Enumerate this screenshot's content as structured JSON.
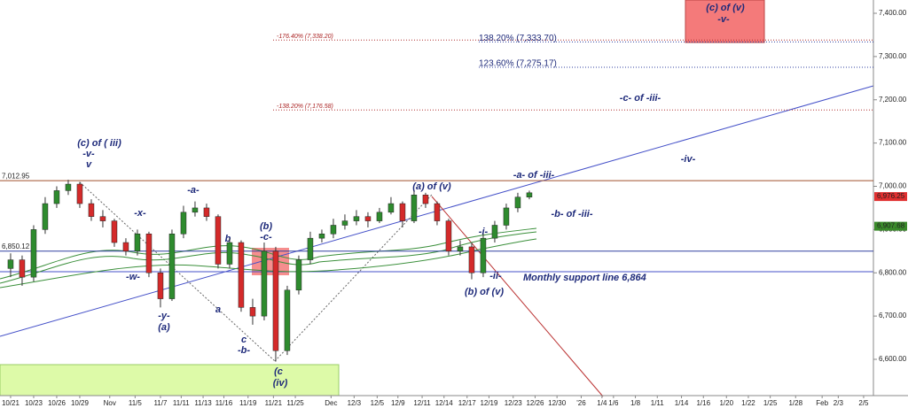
{
  "chart_data": {
    "type": "candlestick",
    "x": [
      0,
      1,
      2,
      3,
      4,
      5,
      6,
      7,
      8,
      9,
      10,
      11,
      12,
      13,
      14,
      15,
      16,
      17,
      18,
      19,
      20,
      21,
      22,
      23,
      24,
      25,
      26,
      27,
      28,
      29,
      30,
      31,
      32,
      33,
      34,
      35,
      36,
      37,
      38,
      39,
      40,
      41,
      42,
      43,
      44,
      45
    ],
    "open": [
      6810,
      6830,
      6790,
      6900,
      6960,
      6990,
      7005,
      6960,
      6930,
      6920,
      6870,
      6850,
      6890,
      6800,
      6740,
      6890,
      6940,
      6950,
      6930,
      6820,
      6870,
      6720,
      6700,
      6850,
      6620,
      6760,
      6830,
      6880,
      6890,
      6910,
      6920,
      6930,
      6920,
      6940,
      6960,
      6920,
      6980,
      6960,
      6920,
      6850,
      6860,
      6800,
      6880,
      6910,
      6950,
      6975
    ],
    "high": [
      6845,
      6840,
      6910,
      6975,
      7000,
      7015,
      7010,
      6970,
      6945,
      6925,
      6880,
      6900,
      6895,
      6810,
      6900,
      6955,
      6965,
      6960,
      6935,
      6880,
      6875,
      6740,
      6870,
      6860,
      6770,
      6840,
      6895,
      6900,
      6925,
      6935,
      6945,
      6940,
      6950,
      6975,
      6965,
      6990,
      6985,
      6965,
      6925,
      6875,
      6870,
      6890,
      6920,
      6960,
      6985,
      6990
    ],
    "low": [
      6790,
      6770,
      6780,
      6890,
      6950,
      6980,
      6950,
      6920,
      6905,
      6860,
      6840,
      6840,
      6790,
      6720,
      6735,
      6880,
      6930,
      6920,
      6810,
      6810,
      6710,
      6680,
      6690,
      6595,
      6610,
      6750,
      6820,
      6870,
      6880,
      6900,
      6910,
      6905,
      6915,
      6935,
      6905,
      6915,
      6950,
      6910,
      6840,
      6840,
      6785,
      6790,
      6870,
      6900,
      6940,
      6970
    ],
    "close": [
      6830,
      6790,
      6900,
      6960,
      6990,
      7005,
      6960,
      6930,
      6920,
      6870,
      6850,
      6890,
      6800,
      6740,
      6890,
      6940,
      6950,
      6930,
      6820,
      6870,
      6720,
      6700,
      6850,
      6620,
      6760,
      6830,
      6880,
      6890,
      6910,
      6920,
      6930,
      6920,
      6940,
      6960,
      6920,
      6980,
      6960,
      6920,
      6850,
      6860,
      6800,
      6880,
      6910,
      6950,
      6975,
      6985
    ],
    "up_color": "#2e8b2e",
    "down_color": "#d42a2a",
    "xlim": [
      -0.92,
      74.85
    ],
    "xticks": [
      {
        "value": 0,
        "label": "10/21"
      },
      {
        "value": 2,
        "label": "10/23"
      },
      {
        "value": 4,
        "label": "10/26"
      },
      {
        "value": 6,
        "label": "10/29"
      },
      {
        "value": 8.6,
        "label": "Nov"
      },
      {
        "value": 10.8,
        "label": "11/5"
      },
      {
        "value": 13,
        "label": "11/7"
      },
      {
        "value": 14.8,
        "label": "11/11"
      },
      {
        "value": 16.7,
        "label": "11/13"
      },
      {
        "value": 18.5,
        "label": "11/16"
      },
      {
        "value": 20.6,
        "label": "11/19"
      },
      {
        "value": 22.8,
        "label": "11/21"
      },
      {
        "value": 24.7,
        "label": "11/25"
      },
      {
        "value": 27.8,
        "label": "Dec"
      },
      {
        "value": 29.8,
        "label": "12/3"
      },
      {
        "value": 31.8,
        "label": "12/5"
      },
      {
        "value": 33.6,
        "label": "12/9"
      },
      {
        "value": 35.7,
        "label": "12/11"
      },
      {
        "value": 37.6,
        "label": "12/14"
      },
      {
        "value": 39.6,
        "label": "12/17"
      },
      {
        "value": 41.5,
        "label": "12/19"
      },
      {
        "value": 43.6,
        "label": "12/23"
      },
      {
        "value": 45.5,
        "label": "12/26"
      },
      {
        "value": 47.4,
        "label": "12/30"
      },
      {
        "value": 49.5,
        "label": "'26"
      },
      {
        "value": 51.3,
        "label": "1/4"
      },
      {
        "value": 52.3,
        "label": "1/6"
      },
      {
        "value": 54.2,
        "label": "1/8"
      },
      {
        "value": 56.1,
        "label": "1/11"
      },
      {
        "value": 58.2,
        "label": "1/14"
      },
      {
        "value": 60.1,
        "label": "1/16"
      },
      {
        "value": 62.1,
        "label": "1/20"
      },
      {
        "value": 64,
        "label": "1/22"
      },
      {
        "value": 65.9,
        "label": "1/25"
      },
      {
        "value": 68.1,
        "label": "1/28"
      },
      {
        "value": 70.4,
        "label": "Feb"
      },
      {
        "value": 71.8,
        "label": "2/3"
      },
      {
        "value": 74,
        "label": "2/5"
      }
    ],
    "ylim": [
      6520,
      7430
    ],
    "yticks": [
      {
        "value": 6600,
        "label": "6,600.00"
      },
      {
        "value": 6700,
        "label": "6,700.00"
      },
      {
        "value": 6800,
        "label": "6,800.00"
      },
      {
        "value": 6900,
        "label": "6,900.00"
      },
      {
        "value": 7000,
        "label": "7,000.00"
      },
      {
        "value": 7100,
        "label": "7,100.00"
      },
      {
        "value": 7200,
        "label": "7,200.00"
      },
      {
        "value": 7300,
        "label": "7,300.00"
      },
      {
        "value": 7400,
        "label": "7,400.00"
      }
    ],
    "levels": [
      {
        "value": 7338.2,
        "label": "-176.40% (7,338.20)",
        "color": "#b03030",
        "style": "fibred"
      },
      {
        "value": 7333.7,
        "label": "138.20% (7,333.70)",
        "color": "#3040a0",
        "style": "fibblue"
      },
      {
        "value": 7275.17,
        "label": "123.60% (7,275.17)",
        "color": "#3040a0",
        "style": "fibblue"
      },
      {
        "value": 7176.58,
        "label": "-138.20% (7,176.58)",
        "color": "#b03030",
        "style": "fibred"
      },
      {
        "value": 7012.95,
        "label": "7,012.95",
        "color": "#a0522d",
        "style": "edge"
      },
      {
        "value": 6850.12,
        "label": "6,850.12",
        "color": "#3040a0",
        "style": "edge"
      }
    ],
    "price_tags": [
      {
        "value": 6976.25,
        "label": "6,976.25",
        "color": "#e03030"
      },
      {
        "value": 6907.68,
        "label": "6,907.68",
        "color": "#3a8a2a"
      }
    ]
  },
  "annotations": [
    "(c) of ( iii)",
    "-v-",
    "v",
    "-x-",
    "-w-",
    "-y-",
    "(a)",
    "-a-",
    "b",
    "a",
    "c",
    "-b-",
    "(b)",
    "-c-",
    "(c",
    "(iv)",
    "(a) of (v)",
    "-i-",
    "-ii-",
    "(b) of (v)",
    "Monthly support line 6,864",
    "-a- of -iii-",
    "-b- of -iii-",
    "-iv-",
    "-c- of -iii-",
    "(c) of (v)",
    "-v-"
  ]
}
